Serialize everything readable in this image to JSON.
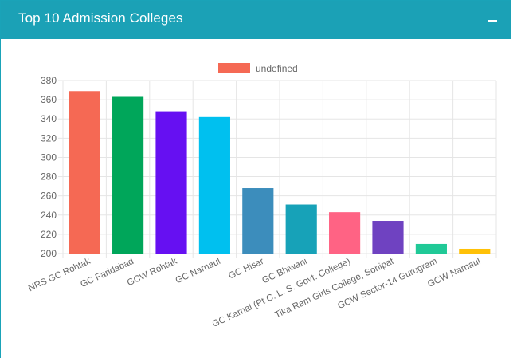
{
  "header": {
    "title": "Top 10 Admission Colleges",
    "collapse_icon": "minus-icon"
  },
  "chart_data": {
    "type": "bar",
    "legend": {
      "label": "undefined",
      "position": "top",
      "color": "#f56954"
    },
    "ylim": [
      200,
      380
    ],
    "yticks": [
      200,
      220,
      240,
      260,
      280,
      300,
      320,
      340,
      360,
      380
    ],
    "grid": true,
    "categories": [
      "NRS GC Rohtak",
      "GC Faridabad",
      "GCW Rohtak",
      "GC Narnaul",
      "GC Hisar",
      "GC Bhiwani",
      "GC Karnal (Pt C. L. S. Govt. College)",
      "Tika Ram Girls College, Sonipat",
      "GCW Sector-14 Gurugram",
      "GCW Narnaul"
    ],
    "values": [
      369,
      363,
      348,
      342,
      268,
      251,
      243,
      234,
      210,
      205
    ],
    "colors": [
      "#f56954",
      "#00a65a",
      "#6610f2",
      "#00c0ef",
      "#3c8dbc",
      "#17a2b8",
      "#ff6384",
      "#6f42c1",
      "#20c997",
      "#ffc107"
    ]
  }
}
